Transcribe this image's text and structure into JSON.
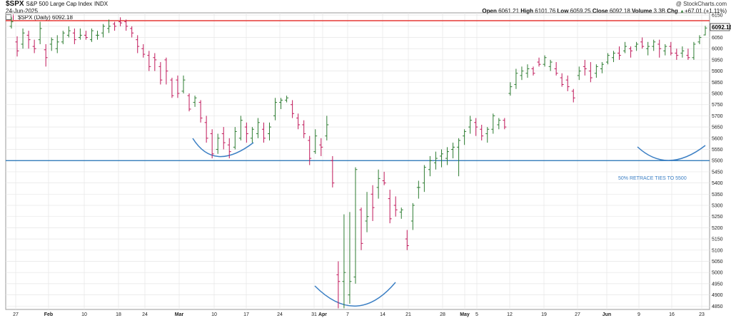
{
  "header": {
    "symbol": "$SPX",
    "name": "S&P 500 Large Cap Index",
    "exchange": "INDX",
    "date": "24-Jun-2025",
    "legend": "$SPX (Daily) 6092.18",
    "copyright": "@ StockCharts.com",
    "open_label": "Open",
    "open": "6061.21",
    "high_label": "High",
    "high": "6101.76",
    "low_label": "Low",
    "low": "6059.25",
    "close_label": "Close",
    "close": "6092.18",
    "volume_label": "Volume",
    "volume": "3.3B",
    "chg_label": "Chg",
    "chg": "+67.01 (+1.11%)",
    "chg_arrow": "▲"
  },
  "chart_data": {
    "type": "ohlc",
    "ylim": [
      4835,
      6160
    ],
    "y_ticks": [
      4850,
      4900,
      4950,
      5000,
      5050,
      5100,
      5150,
      5200,
      5250,
      5300,
      5350,
      5400,
      5450,
      5500,
      5550,
      5600,
      5650,
      5700,
      5750,
      5800,
      5850,
      5900,
      5950,
      6000,
      6050,
      6100,
      6150
    ],
    "x_ticks": [
      "27",
      "Feb",
      "10",
      "18",
      "24",
      "Mar",
      "10",
      "17",
      "24",
      "31",
      "Apr",
      "7",
      "14",
      "21",
      "28",
      "May",
      "5",
      "12",
      "19",
      "27",
      "Jun",
      "9",
      "16",
      "23"
    ],
    "last_price_label": "6092.18",
    "colors": {
      "up": "#2e7d32",
      "down": "#c0185a",
      "resistance": "#e53935",
      "support": "#1e6fb4",
      "arc": "#3b7fc4",
      "grid": "#e6e6e6"
    },
    "resistance_level": 6125,
    "support_level": 5500,
    "annotation": "50% RETRACE TIES TO 5500",
    "bars": [
      [
        6100,
        6140,
        6090,
        6120
      ],
      [
        6030,
        6055,
        5965,
        5990
      ],
      [
        6020,
        6090,
        6000,
        6070
      ],
      [
        6060,
        6080,
        6000,
        6040
      ],
      [
        6010,
        6040,
        5980,
        6000
      ],
      [
        6040,
        6120,
        6020,
        6090
      ],
      [
        5995,
        6020,
        5920,
        5960
      ],
      [
        6020,
        6050,
        5990,
        6040
      ],
      [
        6000,
        6060,
        5980,
        6030
      ],
      [
        6030,
        6080,
        6020,
        6070
      ],
      [
        6060,
        6100,
        6050,
        6080
      ],
      [
        6070,
        6090,
        6020,
        6040
      ],
      [
        6050,
        6090,
        6040,
        6060
      ],
      [
        6060,
        6080,
        6040,
        6050
      ],
      [
        6040,
        6090,
        6030,
        6080
      ],
      [
        6060,
        6080,
        6040,
        6060
      ],
      [
        6070,
        6110,
        6050,
        6100
      ],
      [
        6090,
        6130,
        6070,
        6100
      ],
      [
        6110,
        6120,
        6080,
        6100
      ],
      [
        6120,
        6140,
        6100,
        6115
      ],
      [
        6120,
        6130,
        6080,
        6100
      ],
      [
        6090,
        6100,
        6050,
        6070
      ],
      [
        6040,
        6060,
        5980,
        6010
      ],
      [
        6000,
        6020,
        5960,
        5975
      ],
      [
        5970,
        5990,
        5900,
        5920
      ],
      [
        5960,
        5980,
        5900,
        5950
      ],
      [
        5920,
        5940,
        5840,
        5860
      ],
      [
        5950,
        5960,
        5840,
        5900
      ],
      [
        5860,
        5870,
        5780,
        5790
      ],
      [
        5860,
        5880,
        5780,
        5800
      ],
      [
        5810,
        5880,
        5800,
        5860
      ],
      [
        5790,
        5800,
        5720,
        5730
      ],
      [
        5760,
        5790,
        5740,
        5780
      ],
      [
        5760,
        5770,
        5670,
        5690
      ],
      [
        5670,
        5700,
        5580,
        5600
      ],
      [
        5620,
        5640,
        5510,
        5530
      ],
      [
        5550,
        5620,
        5530,
        5600
      ],
      [
        5620,
        5650,
        5550,
        5580
      ],
      [
        5570,
        5600,
        5510,
        5540
      ],
      [
        5560,
        5650,
        5550,
        5630
      ],
      [
        5600,
        5700,
        5590,
        5680
      ],
      [
        5650,
        5670,
        5580,
        5620
      ],
      [
        5600,
        5650,
        5580,
        5640
      ],
      [
        5620,
        5690,
        5600,
        5670
      ],
      [
        5640,
        5670,
        5580,
        5600
      ],
      [
        5620,
        5670,
        5590,
        5650
      ],
      [
        5700,
        5780,
        5680,
        5760
      ],
      [
        5760,
        5780,
        5730,
        5770
      ],
      [
        5770,
        5790,
        5760,
        5780
      ],
      [
        5750,
        5770,
        5690,
        5710
      ],
      [
        5690,
        5710,
        5640,
        5660
      ],
      [
        5660,
        5680,
        5600,
        5620
      ],
      [
        5590,
        5610,
        5480,
        5510
      ],
      [
        5540,
        5640,
        5530,
        5610
      ],
      [
        5570,
        5600,
        5520,
        5560
      ],
      [
        5610,
        5700,
        5590,
        5660
      ],
      [
        5500,
        5520,
        5380,
        5400
      ],
      [
        4990,
        5050,
        4840,
        4960
      ],
      [
        4960,
        5260,
        4840,
        5000
      ],
      [
        4900,
        5270,
        4860,
        4960
      ],
      [
        4980,
        5470,
        4950,
        5460
      ],
      [
        5280,
        5290,
        5100,
        5130
      ],
      [
        5230,
        5360,
        5180,
        5250
      ],
      [
        5350,
        5390,
        5230,
        5290
      ],
      [
        5380,
        5460,
        5330,
        5420
      ],
      [
        5410,
        5450,
        5390,
        5400
      ],
      [
        5330,
        5370,
        5220,
        5240
      ],
      [
        5300,
        5340,
        5250,
        5280
      ],
      [
        5270,
        5290,
        5240,
        5280
      ],
      [
        5150,
        5190,
        5100,
        5120
      ],
      [
        5230,
        5310,
        5190,
        5300
      ],
      [
        5380,
        5410,
        5330,
        5380
      ],
      [
        5400,
        5480,
        5360,
        5470
      ],
      [
        5460,
        5520,
        5430,
        5500
      ],
      [
        5490,
        5540,
        5460,
        5510
      ],
      [
        5520,
        5550,
        5470,
        5530
      ],
      [
        5510,
        5560,
        5480,
        5540
      ],
      [
        5550,
        5580,
        5510,
        5560
      ],
      [
        5560,
        5600,
        5430,
        5590
      ],
      [
        5610,
        5640,
        5570,
        5630
      ],
      [
        5650,
        5700,
        5620,
        5680
      ],
      [
        5670,
        5690,
        5610,
        5650
      ],
      [
        5640,
        5660,
        5590,
        5610
      ],
      [
        5620,
        5650,
        5580,
        5640
      ],
      [
        5640,
        5710,
        5620,
        5700
      ],
      [
        5660,
        5690,
        5640,
        5680
      ],
      [
        5680,
        5690,
        5640,
        5650
      ],
      [
        5800,
        5850,
        5790,
        5830
      ],
      [
        5840,
        5910,
        5820,
        5890
      ],
      [
        5880,
        5920,
        5860,
        5900
      ],
      [
        5890,
        5930,
        5870,
        5910
      ],
      [
        5910,
        5920,
        5880,
        5890
      ],
      [
        5940,
        5960,
        5920,
        5930
      ],
      [
        5930,
        5970,
        5920,
        5960
      ],
      [
        5920,
        5950,
        5900,
        5940
      ],
      [
        5910,
        5940,
        5880,
        5890
      ],
      [
        5870,
        5890,
        5830,
        5840
      ],
      [
        5860,
        5880,
        5810,
        5830
      ],
      [
        5810,
        5820,
        5760,
        5780
      ],
      [
        5880,
        5920,
        5860,
        5900
      ],
      [
        5920,
        5950,
        5880,
        5910
      ],
      [
        5900,
        5940,
        5850,
        5870
      ],
      [
        5890,
        5930,
        5870,
        5920
      ],
      [
        5910,
        5940,
        5890,
        5930
      ],
      [
        5940,
        5980,
        5930,
        5970
      ],
      [
        5960,
        5990,
        5940,
        5980
      ],
      [
        5980,
        6010,
        5950,
        5970
      ],
      [
        5990,
        6030,
        5980,
        6010
      ],
      [
        6000,
        6010,
        5960,
        5990
      ],
      [
        6010,
        6030,
        5990,
        6020
      ],
      [
        6030,
        6050,
        6000,
        6010
      ],
      [
        6000,
        6030,
        5970,
        6010
      ],
      [
        6010,
        6040,
        5990,
        6030
      ],
      [
        6020,
        6040,
        5960,
        6000
      ],
      [
        5990,
        6020,
        5970,
        6010
      ],
      [
        6010,
        6030,
        5970,
        5980
      ],
      [
        5980,
        6000,
        5950,
        5970
      ],
      [
        5980,
        6010,
        5960,
        5990
      ],
      [
        5970,
        6000,
        5950,
        5960
      ],
      [
        5960,
        6030,
        5950,
        6020
      ],
      [
        6030,
        6060,
        6020,
        6050
      ],
      [
        6061.21,
        6101.76,
        6059.25,
        6092.18
      ]
    ]
  }
}
